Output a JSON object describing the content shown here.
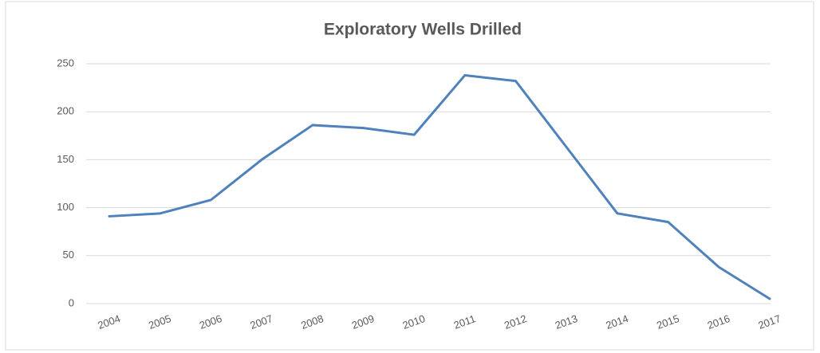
{
  "chart_data": {
    "type": "line",
    "title": "Exploratory Wells Drilled",
    "categories": [
      "2004",
      "2005",
      "2006",
      "2007",
      "2008",
      "2009",
      "2010",
      "2011",
      "2012",
      "2013",
      "2014",
      "2015",
      "2016",
      "2017"
    ],
    "values": [
      91,
      94,
      108,
      150,
      186,
      183,
      176,
      238,
      232,
      163,
      94,
      85,
      38,
      5
    ],
    "color": "#4f81bd",
    "ylim": [
      0,
      250
    ],
    "yticks": [
      0,
      50,
      100,
      150,
      200,
      250
    ],
    "grid": true
  }
}
